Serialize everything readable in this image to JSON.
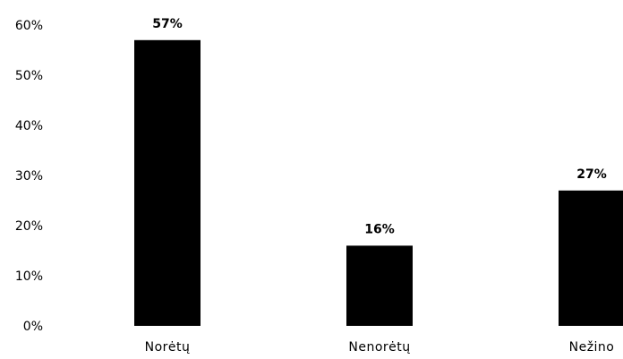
{
  "chart_data": {
    "type": "bar",
    "categories": [
      "Norėtų",
      "Nenorėtų",
      "Nežino"
    ],
    "values": [
      57,
      16,
      27
    ],
    "data_labels": [
      "57%",
      "16%",
      "27%"
    ],
    "ylim": [
      0,
      60
    ],
    "yticks": [
      {
        "value": 0,
        "label": "0%"
      },
      {
        "value": 10,
        "label": "10%"
      },
      {
        "value": 20,
        "label": "20%"
      },
      {
        "value": 30,
        "label": "30%"
      },
      {
        "value": 40,
        "label": "40%"
      },
      {
        "value": 50,
        "label": "50%"
      },
      {
        "value": 60,
        "label": "60%"
      }
    ],
    "title": "",
    "xlabel": "",
    "ylabel": "",
    "grid": false,
    "legend": "none",
    "bar_color": "#000000"
  }
}
